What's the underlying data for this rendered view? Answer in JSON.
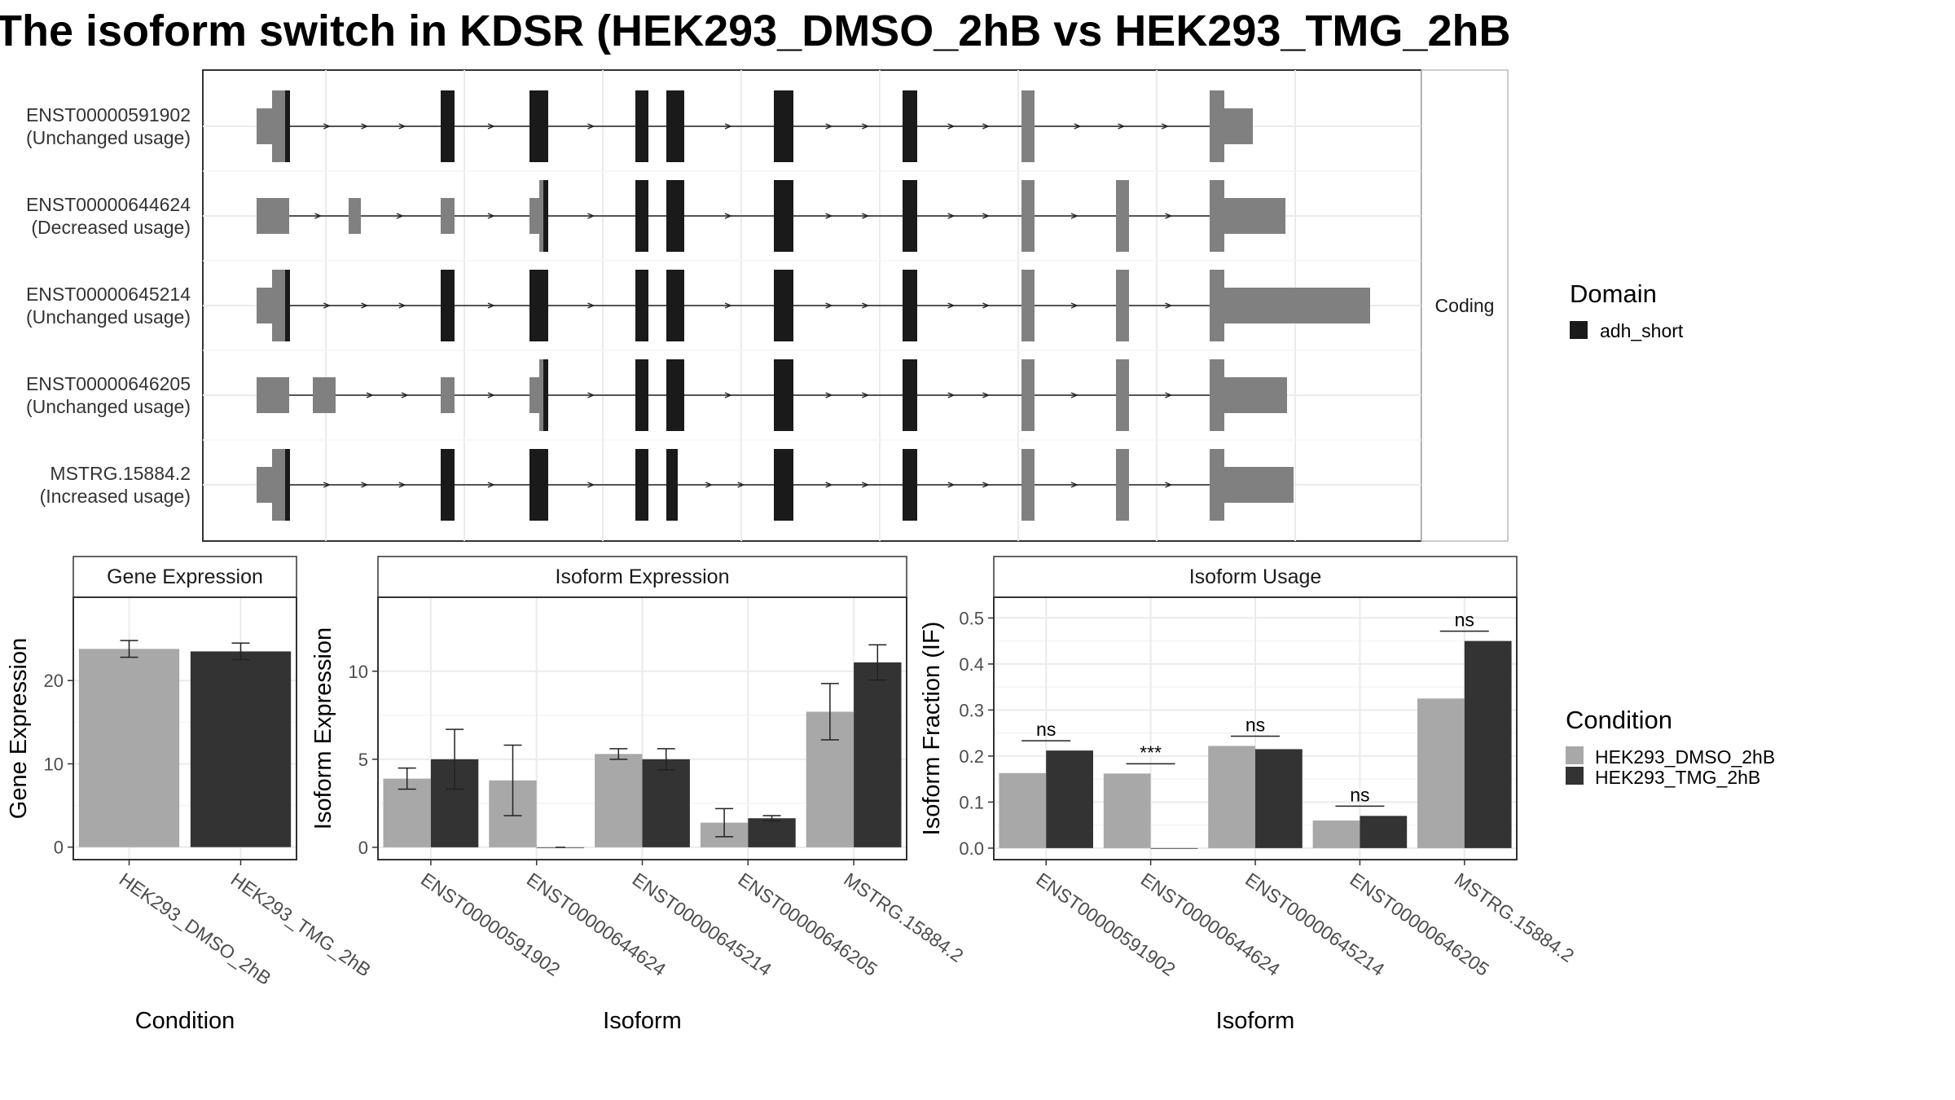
{
  "title": "The isoform switch in KDSR (HEK293_DMSO_2hB vs HEK293_TMG_2hB",
  "colors": {
    "dmso": "#a8a8a8",
    "tmg": "#333333",
    "exon_utr": "#808080",
    "domain": "#1a1a1a",
    "grid": "#ebebeb",
    "strip_bg": "#ffffff"
  },
  "chart_data": [
    {
      "type": "gene-structure",
      "facet_label": "Coding",
      "transcripts": [
        {
          "id": "ENST00000591902",
          "usage": "(Unchanged usage)"
        },
        {
          "id": "ENST00000644624",
          "usage": "(Decreased usage)"
        },
        {
          "id": "ENST00000645214",
          "usage": "(Unchanged usage)"
        },
        {
          "id": "ENST00000646205",
          "usage": "(Unchanged usage)"
        },
        {
          "id": "MSTRG.15884.2",
          "usage": "(Increased usage)"
        }
      ],
      "legend": {
        "title": "Domain",
        "entries": [
          "adh_short"
        ],
        "placement": "right"
      }
    },
    {
      "type": "bar",
      "strip": "Gene Expression",
      "xlabel": "Condition",
      "ylabel": "Gene Expression",
      "categories": [
        "HEK293_DMSO_2hB",
        "HEK293_TMG_2hB"
      ],
      "values": [
        23.8,
        23.5
      ],
      "errors": [
        1.0,
        1.0
      ],
      "ylim": [
        -1.5,
        30
      ],
      "yticks": [
        0,
        10,
        20
      ]
    },
    {
      "type": "bar",
      "strip": "Isoform Expression",
      "xlabel": "Isoform",
      "ylabel": "Isoform Expression",
      "categories": [
        "ENST00000591902",
        "ENST00000644624",
        "ENST00000645214",
        "ENST00000646205",
        "MSTRG.15884.2"
      ],
      "series": [
        {
          "name": "HEK293_DMSO_2hB",
          "values": [
            3.9,
            3.8,
            5.3,
            1.4,
            7.7
          ],
          "errors": [
            0.6,
            2.0,
            0.3,
            0.8,
            1.6
          ]
        },
        {
          "name": "HEK293_TMG_2hB",
          "values": [
            5.0,
            0.0,
            5.0,
            1.65,
            10.5
          ],
          "errors": [
            1.7,
            0.0,
            0.6,
            0.15,
            1.0
          ]
        }
      ],
      "ylim": [
        -0.7,
        14.2
      ],
      "yticks": [
        0,
        5,
        10
      ]
    },
    {
      "type": "bar",
      "strip": "Isoform Usage",
      "xlabel": "Isoform",
      "ylabel": "Isoform Fraction (IF)",
      "categories": [
        "ENST00000591902",
        "ENST00000644624",
        "ENST00000645214",
        "ENST00000646205",
        "MSTRG.15884.2"
      ],
      "series": [
        {
          "name": "HEK293_DMSO_2hB",
          "values": [
            0.163,
            0.162,
            0.222,
            0.06,
            0.325
          ]
        },
        {
          "name": "HEK293_TMG_2hB",
          "values": [
            0.212,
            0.0,
            0.215,
            0.07,
            0.45
          ]
        }
      ],
      "significance": [
        "ns",
        "***",
        "ns",
        "ns",
        "ns"
      ],
      "ylim": [
        -0.025,
        0.545
      ],
      "yticks": [
        0.0,
        0.1,
        0.2,
        0.3,
        0.4,
        0.5
      ],
      "yticklabels": [
        "0.0",
        "0.1",
        "0.2",
        "0.3",
        "0.4",
        "0.5"
      ]
    }
  ],
  "condition_legend": {
    "title": "Condition",
    "entries": [
      "HEK293_DMSO_2hB",
      "HEK293_TMG_2hB"
    ],
    "placement": "right"
  }
}
